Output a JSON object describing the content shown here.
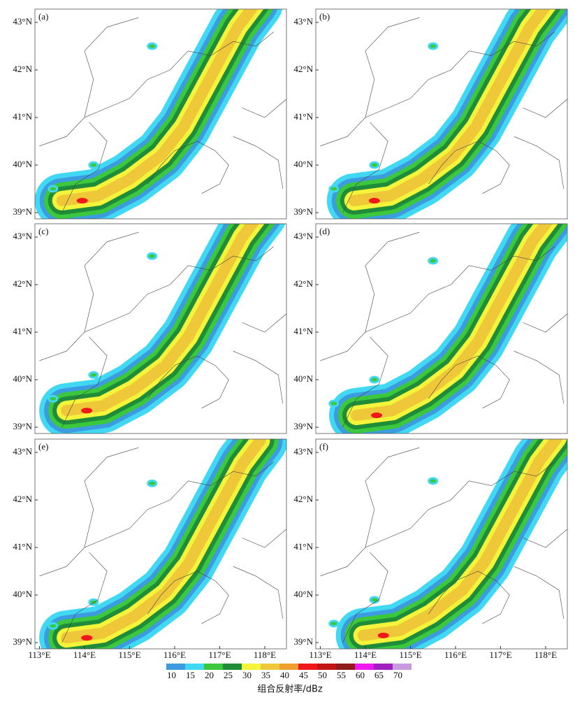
{
  "panels": [
    {
      "label": "(a)"
    },
    {
      "label": "(b)"
    },
    {
      "label": "(c)"
    },
    {
      "label": "(d)"
    },
    {
      "label": "(e)"
    },
    {
      "label": "(f)"
    }
  ],
  "lat_ticks": [
    {
      "value": 43,
      "label": "43°N"
    },
    {
      "value": 42,
      "label": "42°N"
    },
    {
      "value": 41,
      "label": "41°N"
    },
    {
      "value": 40,
      "label": "40°N"
    },
    {
      "value": 39,
      "label": "39°N"
    }
  ],
  "lon_ticks": [
    {
      "value": 113,
      "label": "113°E"
    },
    {
      "value": 114,
      "label": "114°E"
    },
    {
      "value": 115,
      "label": "115°E"
    },
    {
      "value": 116,
      "label": "116°E"
    },
    {
      "value": 117,
      "label": "117°E"
    },
    {
      "value": 118,
      "label": "118°E"
    }
  ],
  "colorbar": {
    "title": "组合反射率/dBz",
    "ticks": [
      10,
      15,
      20,
      25,
      30,
      35,
      40,
      45,
      50,
      55,
      60,
      65,
      70
    ],
    "colors": [
      "#3d9be0",
      "#40d8f2",
      "#3cc83c",
      "#1f8c3a",
      "#f4f43a",
      "#efc83a",
      "#f0a02c",
      "#f01818",
      "#c41414",
      "#8e1a1a",
      "#f018f0",
      "#a020c0",
      "#c89ae0"
    ]
  }
}
